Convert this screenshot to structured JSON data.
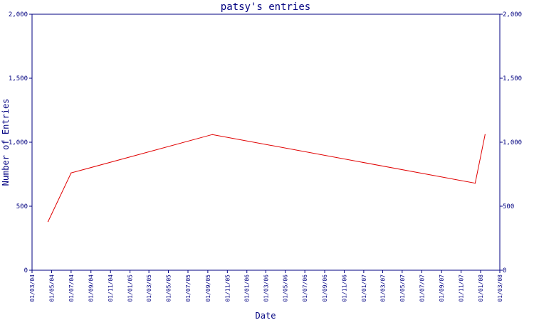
{
  "colors": {
    "background": "#ffffff",
    "axis": "#000080",
    "text": "#000080",
    "series": "#e00000"
  },
  "chart_data": {
    "type": "line",
    "title": "patsy's entries",
    "xlabel": "Date",
    "ylabel": "Number of Entries",
    "ylim": [
      0,
      2000
    ],
    "xlim": [
      "2004-03-01",
      "2008-03-01"
    ],
    "grid": false,
    "y_ticks": [
      0,
      500,
      1000,
      1500,
      2000
    ],
    "y_tick_labels": [
      "0",
      "500",
      "1,000",
      "1,500",
      "2,000"
    ],
    "x_ticks": [
      "2004-03-01",
      "2004-05-01",
      "2004-07-01",
      "2004-09-01",
      "2004-11-01",
      "2005-01-01",
      "2005-03-01",
      "2005-05-01",
      "2005-07-01",
      "2005-09-01",
      "2005-11-01",
      "2006-01-01",
      "2006-03-01",
      "2006-05-01",
      "2006-07-01",
      "2006-09-01",
      "2006-11-01",
      "2007-01-01",
      "2007-03-01",
      "2007-05-01",
      "2007-07-01",
      "2007-09-01",
      "2007-11-01",
      "2008-01-01",
      "2008-03-01"
    ],
    "x_tick_labels": [
      "01/03/04",
      "01/05/04",
      "01/07/04",
      "01/09/04",
      "01/11/04",
      "01/01/05",
      "01/03/05",
      "01/05/05",
      "01/07/05",
      "01/09/05",
      "01/11/05",
      "01/01/06",
      "01/03/06",
      "01/05/06",
      "01/07/06",
      "01/09/06",
      "01/11/06",
      "01/01/07",
      "01/03/07",
      "01/05/07",
      "01/07/07",
      "01/09/07",
      "01/11/07",
      "01/01/08",
      "01/03/08"
    ],
    "series": [
      {
        "x": [
          "2004-04-20",
          "2004-07-01",
          "2005-09-15",
          "2007-12-15",
          "2008-01-15"
        ],
        "values": [
          380,
          760,
          1060,
          680,
          1060
        ]
      }
    ]
  }
}
